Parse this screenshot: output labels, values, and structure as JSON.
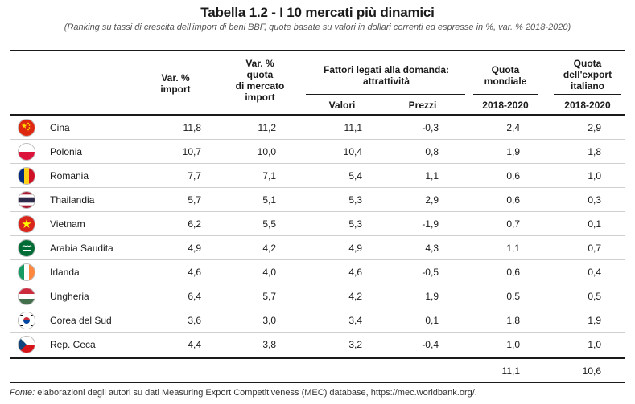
{
  "title": "Tabella 1.2 - I 10 mercati più dinamici",
  "subtitle": "(Ranking su tassi di crescita dell'import di beni BBF, quote basate su valori in dollari correnti ed espresse in %, var. % 2018-2020)",
  "headers": {
    "var_import": "Var. %\nimport",
    "var_quota": "Var. %\nquota\ndi mercato\nimport",
    "fattori": "Fattori legati alla domanda:\nattrattività",
    "valori": "Valori",
    "prezzi": "Prezzi",
    "quota_mondiale": "Quota\nmondiale",
    "quota_export": "Quota\ndell'export\nitaliano",
    "period_mondiale": "2018-2020",
    "period_export": "2018-2020"
  },
  "rows": [
    {
      "country": "Cina",
      "flag": "china-flag",
      "var_import": "11,8",
      "var_quota": "11,2",
      "valori": "11,1",
      "prezzi": "-0,3",
      "quota_mondiale": "2,4",
      "quota_export": "2,9"
    },
    {
      "country": "Polonia",
      "flag": "poland-flag",
      "var_import": "10,7",
      "var_quota": "10,0",
      "valori": "10,4",
      "prezzi": "0,8",
      "quota_mondiale": "1,9",
      "quota_export": "1,8"
    },
    {
      "country": "Romania",
      "flag": "romania-flag",
      "var_import": "7,7",
      "var_quota": "7,1",
      "valori": "5,4",
      "prezzi": "1,1",
      "quota_mondiale": "0,6",
      "quota_export": "1,0"
    },
    {
      "country": "Thailandia",
      "flag": "thailand-flag",
      "var_import": "5,7",
      "var_quota": "5,1",
      "valori": "5,3",
      "prezzi": "2,9",
      "quota_mondiale": "0,6",
      "quota_export": "0,3"
    },
    {
      "country": "Vietnam",
      "flag": "vietnam-flag",
      "var_import": "6,2",
      "var_quota": "5,5",
      "valori": "5,3",
      "prezzi": "-1,9",
      "quota_mondiale": "0,7",
      "quota_export": "0,1"
    },
    {
      "country": "Arabia Saudita",
      "flag": "saudi-arabia-flag",
      "var_import": "4,9",
      "var_quota": "4,2",
      "valori": "4,9",
      "prezzi": "4,3",
      "quota_mondiale": "1,1",
      "quota_export": "0,7"
    },
    {
      "country": "Irlanda",
      "flag": "ireland-flag",
      "var_import": "4,6",
      "var_quota": "4,0",
      "valori": "4,6",
      "prezzi": "-0,5",
      "quota_mondiale": "0,6",
      "quota_export": "0,4"
    },
    {
      "country": "Ungheria",
      "flag": "hungary-flag",
      "var_import": "6,4",
      "var_quota": "5,7",
      "valori": "4,2",
      "prezzi": "1,9",
      "quota_mondiale": "0,5",
      "quota_export": "0,5"
    },
    {
      "country": "Corea del Sud",
      "flag": "south-korea-flag",
      "var_import": "3,6",
      "var_quota": "3,0",
      "valori": "3,4",
      "prezzi": "0,1",
      "quota_mondiale": "1,8",
      "quota_export": "1,9"
    },
    {
      "country": "Rep. Ceca",
      "flag": "czech-flag",
      "var_import": "4,4",
      "var_quota": "3,8",
      "valori": "3,2",
      "prezzi": "-0,4",
      "quota_mondiale": "1,0",
      "quota_export": "1,0"
    }
  ],
  "totals": {
    "quota_mondiale": "11,1",
    "quota_export": "10,6"
  },
  "footer": {
    "label": "Fonte:",
    "text": " elaborazioni degli autori su dati Measuring Export Competitiveness (MEC) database, https://mec.worldbank.org/."
  }
}
